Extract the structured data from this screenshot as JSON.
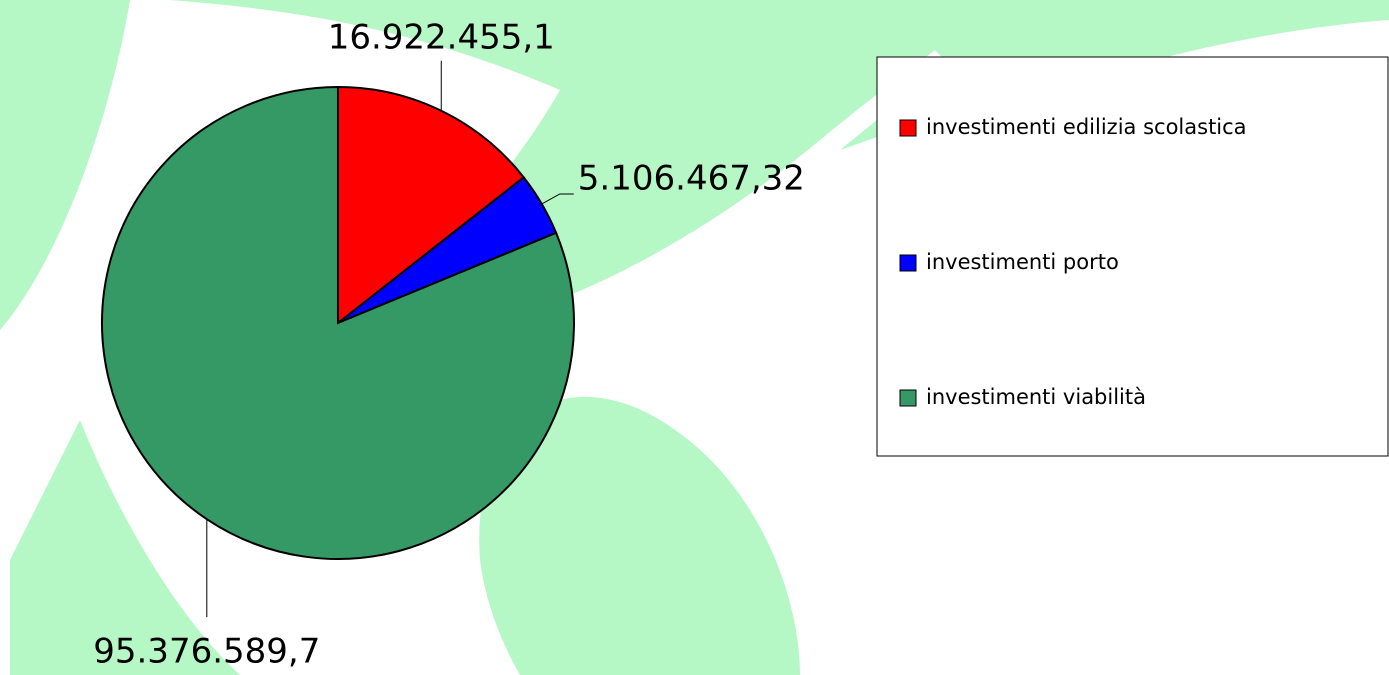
{
  "chart_data": {
    "type": "pie",
    "categories": [
      "investimenti edilizia scolastica",
      "investimenti porto",
      "investimenti viabilità"
    ],
    "values": [
      16922455.1,
      5106467.32,
      95376589.7
    ],
    "value_labels": [
      "16.922.455,1",
      "5.106.467,32",
      "95.376.589,7"
    ],
    "colors": [
      "#ff0000",
      "#0000ff",
      "#359966"
    ],
    "legend": "right"
  }
}
